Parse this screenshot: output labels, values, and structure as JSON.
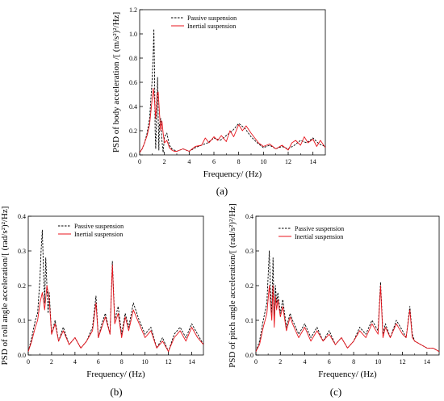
{
  "colors": {
    "passive": "#000000",
    "inertial": "#e8141c",
    "axis": "#000000"
  },
  "chart_data": [
    {
      "id": "a",
      "type": "line",
      "caption": "(a)",
      "xlabel": "Frequency/ (Hz)",
      "ylabel": "PSD of body acceleration /[ (m/s²)²/Hz]",
      "xlim": [
        0,
        15
      ],
      "ylim": [
        0,
        1.2
      ],
      "xticks": [
        "0",
        "2",
        "4",
        "6",
        "8",
        "10",
        "12",
        "14"
      ],
      "yticks": [
        "0.0",
        "0.2",
        "0.4",
        "0.6",
        "0.8",
        "1.0",
        "1.2"
      ],
      "legend": [
        "Passive suspension",
        "Inertial suspension"
      ],
      "legend_position": "top-center",
      "series": [
        {
          "name": "Passive suspension",
          "style": "dashed",
          "x": [
            0,
            0.2,
            0.4,
            0.6,
            0.8,
            0.9,
            1.0,
            1.1,
            1.15,
            1.2,
            1.25,
            1.3,
            1.4,
            1.45,
            1.5,
            1.55,
            1.6,
            1.7,
            1.8,
            1.9,
            2.0,
            2.2,
            2.4,
            2.6,
            2.8,
            3.0,
            3.5,
            4.0,
            4.5,
            5.0,
            5.5,
            6.0,
            6.5,
            7.0,
            7.5,
            8.0,
            8.5,
            9.0,
            9.5,
            10.0,
            10.5,
            11.0,
            11.5,
            12.0,
            12.5,
            13.0,
            13.5,
            14.0,
            14.5,
            15.0
          ],
          "y": [
            0.02,
            0.05,
            0.1,
            0.18,
            0.3,
            0.45,
            0.6,
            0.85,
            1.04,
            0.7,
            0.2,
            0.05,
            0.45,
            0.64,
            0.3,
            0.04,
            0.25,
            0.3,
            0.12,
            0.02,
            0.15,
            0.18,
            0.08,
            0.05,
            0.04,
            0.03,
            0.05,
            0.03,
            0.06,
            0.08,
            0.1,
            0.14,
            0.12,
            0.16,
            0.2,
            0.26,
            0.22,
            0.15,
            0.1,
            0.06,
            0.08,
            0.05,
            0.07,
            0.05,
            0.08,
            0.12,
            0.1,
            0.14,
            0.09,
            0.07
          ]
        },
        {
          "name": "Inertial suspension",
          "style": "solid",
          "x": [
            0,
            0.2,
            0.4,
            0.6,
            0.8,
            0.9,
            1.0,
            1.1,
            1.2,
            1.3,
            1.4,
            1.5,
            1.6,
            1.7,
            1.8,
            1.9,
            2.0,
            2.2,
            2.4,
            2.6,
            2.8,
            3.0,
            3.5,
            4.0,
            4.5,
            5.0,
            5.3,
            5.6,
            6.0,
            6.3,
            6.6,
            7.0,
            7.3,
            7.6,
            8.0,
            8.3,
            8.6,
            9.0,
            9.3,
            9.6,
            10.0,
            10.5,
            11.0,
            11.5,
            12.0,
            12.3,
            12.6,
            13.0,
            13.3,
            13.6,
            14.0,
            14.3,
            14.6,
            15.0
          ],
          "y": [
            0.02,
            0.05,
            0.1,
            0.16,
            0.25,
            0.35,
            0.45,
            0.55,
            0.45,
            0.3,
            0.5,
            0.52,
            0.35,
            0.2,
            0.28,
            0.18,
            0.1,
            0.12,
            0.06,
            0.04,
            0.03,
            0.03,
            0.05,
            0.03,
            0.07,
            0.08,
            0.14,
            0.1,
            0.15,
            0.12,
            0.16,
            0.11,
            0.2,
            0.15,
            0.25,
            0.2,
            0.24,
            0.18,
            0.14,
            0.1,
            0.07,
            0.09,
            0.05,
            0.08,
            0.04,
            0.1,
            0.12,
            0.08,
            0.15,
            0.1,
            0.13,
            0.07,
            0.12,
            0.06
          ]
        }
      ]
    },
    {
      "id": "b",
      "type": "line",
      "caption": "(b)",
      "xlabel": "Frequency/ (Hz)",
      "ylabel": "PSD of roll angle acceleration/[ (rad/s²)²/Hz]",
      "xlim": [
        0,
        15
      ],
      "ylim": [
        0,
        0.4
      ],
      "xticks": [
        "0",
        "2",
        "4",
        "6",
        "8",
        "10",
        "12",
        "14"
      ],
      "yticks": [
        "0.0",
        "0.1",
        "0.2",
        "0.3",
        "0.4"
      ],
      "legend": [
        "Passive suspension",
        "Inertial suspension"
      ],
      "legend_position": "top-left",
      "series": [
        {
          "name": "Passive suspension",
          "style": "dashed",
          "x": [
            0,
            0.3,
            0.6,
            0.8,
            1.0,
            1.1,
            1.2,
            1.3,
            1.4,
            1.5,
            1.6,
            1.7,
            1.8,
            2.0,
            2.3,
            2.6,
            3.0,
            3.5,
            4.0,
            4.5,
            5.0,
            5.5,
            5.8,
            6.0,
            6.3,
            6.6,
            7.0,
            7.2,
            7.4,
            7.7,
            8.0,
            8.3,
            8.6,
            9.0,
            9.5,
            10.0,
            10.5,
            11.0,
            11.5,
            12.0,
            12.5,
            13.0,
            13.5,
            14.0,
            14.5,
            15.0
          ],
          "y": [
            0.01,
            0.05,
            0.1,
            0.12,
            0.22,
            0.3,
            0.36,
            0.25,
            0.15,
            0.28,
            0.2,
            0.12,
            0.18,
            0.06,
            0.1,
            0.04,
            0.08,
            0.03,
            0.05,
            0.02,
            0.04,
            0.08,
            0.17,
            0.05,
            0.09,
            0.12,
            0.06,
            0.27,
            0.1,
            0.14,
            0.06,
            0.12,
            0.08,
            0.15,
            0.1,
            0.06,
            0.08,
            0.02,
            0.05,
            0.01,
            0.06,
            0.08,
            0.05,
            0.09,
            0.06,
            0.03
          ]
        },
        {
          "name": "Inertial suspension",
          "style": "solid",
          "x": [
            0,
            0.3,
            0.6,
            0.8,
            1.0,
            1.2,
            1.4,
            1.6,
            1.8,
            2.0,
            2.3,
            2.6,
            3.0,
            3.5,
            4.0,
            4.5,
            5.0,
            5.5,
            5.8,
            6.0,
            6.3,
            6.6,
            7.0,
            7.2,
            7.4,
            7.7,
            8.0,
            8.3,
            8.6,
            9.0,
            9.5,
            10.0,
            10.5,
            11.0,
            11.5,
            12.0,
            12.5,
            13.0,
            13.5,
            14.0,
            14.5,
            15.0
          ],
          "y": [
            0.01,
            0.04,
            0.08,
            0.1,
            0.15,
            0.18,
            0.13,
            0.2,
            0.16,
            0.06,
            0.09,
            0.04,
            0.07,
            0.03,
            0.05,
            0.02,
            0.04,
            0.07,
            0.15,
            0.05,
            0.08,
            0.11,
            0.06,
            0.26,
            0.09,
            0.12,
            0.05,
            0.11,
            0.07,
            0.13,
            0.09,
            0.05,
            0.07,
            0.02,
            0.04,
            0.01,
            0.05,
            0.07,
            0.04,
            0.08,
            0.05,
            0.03
          ]
        }
      ]
    },
    {
      "id": "c",
      "type": "line",
      "caption": "(c)",
      "xlabel": "Frequency/ (Hz)",
      "ylabel": "PSD of pitch angle acceleration/[ (rad/s²)²/Hz]",
      "xlim": [
        0,
        15
      ],
      "ylim": [
        0,
        0.4
      ],
      "xticks": [
        "0",
        "2",
        "4",
        "6",
        "8",
        "10",
        "12",
        "14"
      ],
      "yticks": [
        "0.0",
        "0.1",
        "0.2",
        "0.3",
        "0.4"
      ],
      "legend": [
        "Passive suspension",
        "Inertial suspension"
      ],
      "legend_position": "top-center",
      "series": [
        {
          "name": "Passive suspension",
          "style": "dashed",
          "x": [
            0,
            0.3,
            0.6,
            0.9,
            1.1,
            1.2,
            1.3,
            1.4,
            1.5,
            1.6,
            1.7,
            1.8,
            2.0,
            2.2,
            2.5,
            2.8,
            3.0,
            3.5,
            4.0,
            4.5,
            5.0,
            5.5,
            6.0,
            6.5,
            7.0,
            7.5,
            8.0,
            8.5,
            9.0,
            9.5,
            10.0,
            10.2,
            10.4,
            10.6,
            11.0,
            11.5,
            12.0,
            12.3,
            12.6,
            12.8,
            13.0,
            13.5,
            14.0,
            14.5,
            15.0
          ],
          "y": [
            0.01,
            0.04,
            0.1,
            0.15,
            0.3,
            0.18,
            0.12,
            0.28,
            0.1,
            0.2,
            0.15,
            0.18,
            0.12,
            0.16,
            0.08,
            0.12,
            0.1,
            0.06,
            0.09,
            0.05,
            0.08,
            0.04,
            0.07,
            0.03,
            0.05,
            0.02,
            0.04,
            0.08,
            0.06,
            0.1,
            0.07,
            0.21,
            0.06,
            0.09,
            0.05,
            0.1,
            0.07,
            0.05,
            0.14,
            0.06,
            0.04,
            0.03,
            0.02,
            0.02,
            0.01
          ]
        },
        {
          "name": "Inertial suspension",
          "style": "solid",
          "x": [
            0,
            0.3,
            0.6,
            0.9,
            1.1,
            1.2,
            1.3,
            1.4,
            1.5,
            1.6,
            1.7,
            1.8,
            2.0,
            2.2,
            2.5,
            2.8,
            3.0,
            3.5,
            4.0,
            4.5,
            5.0,
            5.5,
            6.0,
            6.5,
            7.0,
            7.5,
            8.0,
            8.5,
            9.0,
            9.5,
            10.0,
            10.2,
            10.4,
            10.6,
            11.0,
            11.5,
            12.0,
            12.3,
            12.6,
            12.8,
            13.0,
            13.5,
            14.0,
            14.5,
            15.0
          ],
          "y": [
            0.01,
            0.03,
            0.08,
            0.12,
            0.2,
            0.14,
            0.1,
            0.2,
            0.08,
            0.17,
            0.13,
            0.16,
            0.11,
            0.14,
            0.07,
            0.11,
            0.09,
            0.05,
            0.08,
            0.04,
            0.07,
            0.04,
            0.06,
            0.03,
            0.05,
            0.02,
            0.04,
            0.07,
            0.05,
            0.09,
            0.06,
            0.2,
            0.05,
            0.08,
            0.05,
            0.09,
            0.06,
            0.05,
            0.13,
            0.05,
            0.04,
            0.03,
            0.02,
            0.02,
            0.01
          ]
        }
      ]
    }
  ]
}
